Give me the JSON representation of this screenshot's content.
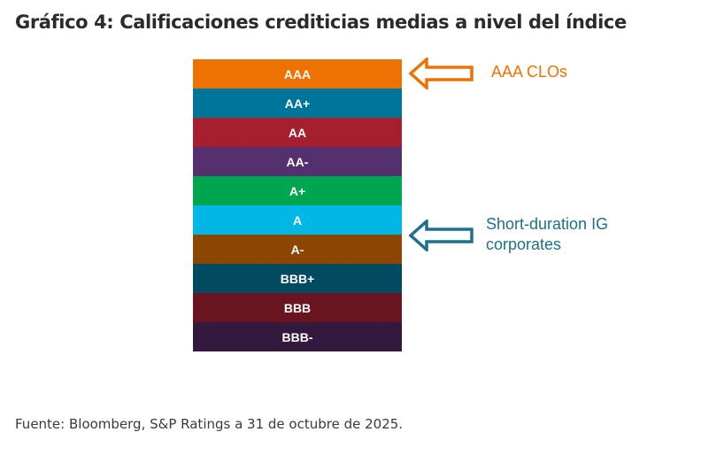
{
  "title": "Gráfico 4: Calificaciones crediticias medias a nivel del índice",
  "ratings": [
    {
      "label": "AAA",
      "color": "#EE7203"
    },
    {
      "label": "AA+",
      "color": "#00759B"
    },
    {
      "label": "AA",
      "color": "#A51F2E"
    },
    {
      "label": "AA-",
      "color": "#54306E"
    },
    {
      "label": "A+",
      "color": "#00A54F"
    },
    {
      "label": "A",
      "color": "#00B7E5"
    },
    {
      "label": "A-",
      "color": "#8D4602"
    },
    {
      "label": "BBB+",
      "color": "#024A5F"
    },
    {
      "label": "BBB",
      "color": "#6A1420"
    },
    {
      "label": "BBB-",
      "color": "#34193E"
    }
  ],
  "callouts": {
    "aaa_clos": {
      "text": "AAA CLOs",
      "color": "#EE7203",
      "points_to": "AAA"
    },
    "ig_corporates": {
      "line1": "Short-duration IG",
      "line2": "corporates",
      "color": "#1F6F8E",
      "points_to": "A"
    }
  },
  "source": "Fuente: Bloomberg, S&P Ratings a 31 de octubre de 2025."
}
